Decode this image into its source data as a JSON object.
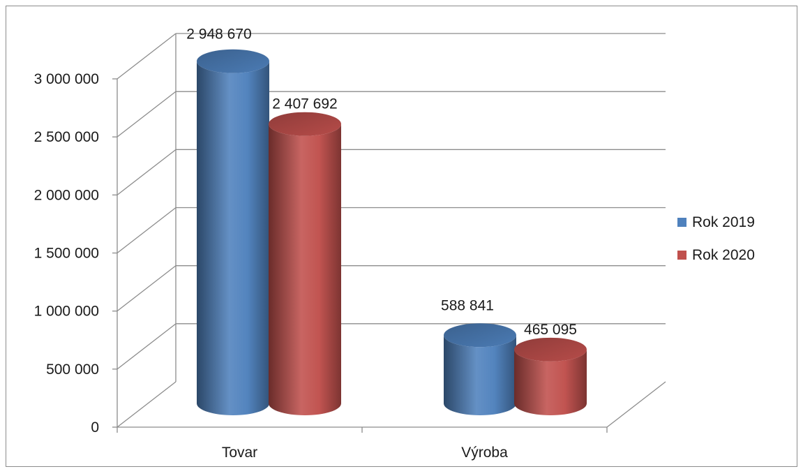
{
  "chart_data": {
    "type": "bar",
    "style": "3d-cylinder",
    "categories": [
      "Tovar",
      "Výroba"
    ],
    "series": [
      {
        "name": "Rok 2019",
        "color": "#4f81bd",
        "values": [
          2948670,
          588841
        ]
      },
      {
        "name": "Rok 2020",
        "color": "#c0504d",
        "values": [
          2407692,
          465095
        ]
      }
    ],
    "data_labels": [
      [
        "2 948 670",
        "588 841"
      ],
      [
        "2 407 692",
        "465 095"
      ]
    ],
    "y_ticks": [
      {
        "value": 0,
        "label": "0"
      },
      {
        "value": 500000,
        "label": "500 000"
      },
      {
        "value": 1000000,
        "label": "1 000 000"
      },
      {
        "value": 1500000,
        "label": "1 500 000"
      },
      {
        "value": 2000000,
        "label": "2 000 000"
      },
      {
        "value": 2500000,
        "label": "2 500 000"
      },
      {
        "value": 3000000,
        "label": "3 000 000"
      }
    ],
    "ylim": [
      0,
      3000000
    ],
    "grid": true,
    "legend_position": "right",
    "title": "",
    "xlabel": "",
    "ylabel": ""
  }
}
